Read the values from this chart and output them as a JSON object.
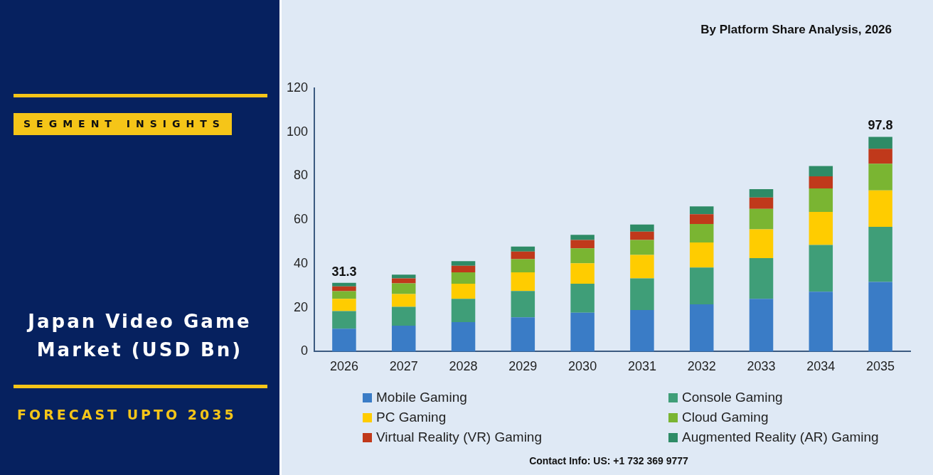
{
  "chart_data": {
    "type": "bar",
    "title": "Japan Video Game Market (USD Bn)",
    "subtitle": "By Platform Share Analysis, 2026",
    "annotations": [
      "SEGMENT INSIGHTS",
      "FORECAST UPTO 2035",
      "Contact Info: US: +1 732 369 9777"
    ],
    "categories": [
      "2026",
      "2027",
      "2028",
      "2029",
      "2030",
      "2031",
      "2032",
      "2033",
      "2034",
      "2035"
    ],
    "stacked": true,
    "series": [
      {
        "name": "Mobile Gaming",
        "color": "#3a7cc6",
        "values": [
          10.4,
          11.8,
          13.4,
          15.6,
          17.7,
          18.9,
          21.5,
          24.0,
          27.3,
          31.7
        ]
      },
      {
        "name": "Console Gaming",
        "color": "#3f9e78",
        "values": [
          8.0,
          8.6,
          10.6,
          12.0,
          13.2,
          14.4,
          16.8,
          18.6,
          21.3,
          25.1
        ]
      },
      {
        "name": "PC Gaming",
        "color": "#ffcc00",
        "values": [
          5.6,
          5.8,
          6.9,
          8.5,
          9.3,
          10.7,
          11.4,
          13.1,
          15.0,
          16.6
        ]
      },
      {
        "name": "Cloud Gaming",
        "color": "#7ab532",
        "values": [
          3.5,
          4.9,
          5.2,
          6.0,
          6.8,
          6.8,
          8.4,
          9.3,
          10.7,
          12.2
        ]
      },
      {
        "name": "Virtual Reality (VR) Gaming",
        "color": "#c0391b",
        "values": [
          2.2,
          2.2,
          3.0,
          3.5,
          3.8,
          3.8,
          4.5,
          5.2,
          5.5,
          6.8
        ]
      },
      {
        "name": "Augmented Reality (AR) Gaming",
        "color": "#2e8b66",
        "values": [
          1.6,
          1.7,
          2.1,
          2.2,
          2.4,
          3.3,
          3.5,
          3.8,
          4.7,
          5.4
        ]
      }
    ],
    "totals": [
      "31.3",
      null,
      null,
      null,
      null,
      null,
      null,
      null,
      null,
      "97.8"
    ],
    "ylim": [
      0,
      120
    ],
    "yticks": [
      0,
      20,
      40,
      60,
      80,
      100,
      120
    ],
    "grid": false,
    "legend": "bottom"
  }
}
